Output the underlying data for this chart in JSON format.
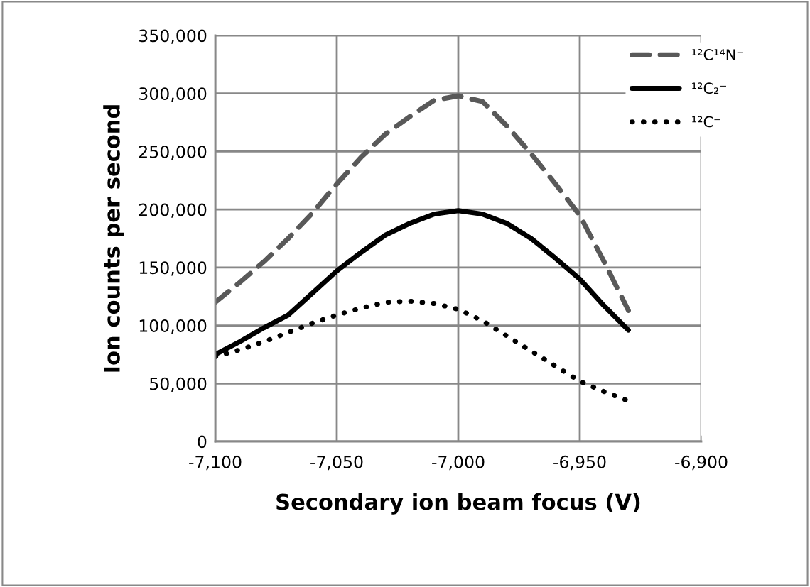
{
  "chart_data": {
    "type": "line",
    "xlabel": "Secondary ion beam focus (V)",
    "ylabel": "Ion counts per second",
    "x": [
      -7100,
      -7090,
      -7080,
      -7070,
      -7060,
      -7050,
      -7040,
      -7030,
      -7020,
      -7010,
      -7000,
      -6990,
      -6980,
      -6970,
      -6960,
      -6950,
      -6940,
      -6930
    ],
    "series": [
      {
        "name": "¹²C¹⁴N⁻",
        "color": "#595959",
        "line_style": "dashed",
        "values": [
          120000,
          137000,
          155000,
          175000,
          197000,
          222000,
          245000,
          265000,
          280000,
          294000,
          298000,
          293000,
          272000,
          248000,
          222000,
          195000,
          155000,
          113000
        ]
      },
      {
        "name": "¹²C₂⁻",
        "color": "#000000",
        "line_style": "solid",
        "values": [
          75000,
          86000,
          98000,
          109000,
          128000,
          147000,
          163000,
          178000,
          188000,
          196000,
          199000,
          196000,
          188000,
          175000,
          158000,
          140000,
          117000,
          96000
        ]
      },
      {
        "name": "¹²C⁻",
        "color": "#000000",
        "line_style": "dotted",
        "values": [
          73000,
          79000,
          86000,
          94000,
          102000,
          109000,
          115000,
          120000,
          121000,
          119000,
          114000,
          104000,
          91000,
          78000,
          65000,
          52000,
          43000,
          35000
        ]
      }
    ],
    "xlim": [
      -7100,
      -6900
    ],
    "xticks": [
      {
        "value": -7100,
        "label": "-7,100"
      },
      {
        "value": -7050,
        "label": "-7,050"
      },
      {
        "value": -7000,
        "label": "-7,000"
      },
      {
        "value": -6950,
        "label": "-6,950"
      },
      {
        "value": -6900,
        "label": "-6,900"
      }
    ],
    "ylim": [
      0,
      350000
    ],
    "yticks": [
      0,
      {
        "value": 50000,
        "label": "50,000"
      },
      {
        "value": 100000,
        "label": "100,000"
      },
      {
        "value": 150000,
        "label": "150,000"
      },
      {
        "value": 200000,
        "label": "200,000"
      },
      {
        "value": 250000,
        "label": "250,000"
      },
      {
        "value": 300000,
        "label": "300,000"
      },
      {
        "value": 350000,
        "label": "350,000"
      }
    ],
    "grid": true,
    "legend": "top right",
    "marker": "none"
  }
}
